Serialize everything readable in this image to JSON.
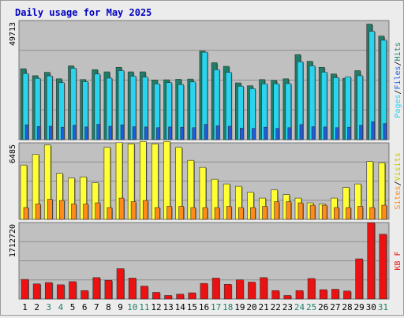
{
  "title": "Daily usage for May 2025",
  "colors": {
    "hits": "#1e7e68",
    "files": "#2ad4ee",
    "pages": "#1d5ee0",
    "visits": "#ffff33",
    "sites": "#ff8c1a",
    "kbytes": "#ee1111",
    "title": "#0000c0",
    "panel": "#c0c0c0",
    "day_weekday": "#000000",
    "day_weekend": "#1e7e68"
  },
  "chart_data": [
    {
      "type": "bar",
      "panel": "hits-files-pages",
      "ymax_label": "49713",
      "ylim": [
        0,
        49713
      ],
      "legend": {
        "pages": "Pages",
        "files": "Files",
        "hits": "Hits",
        "sep": "/"
      },
      "categories": [
        "1",
        "2",
        "3",
        "4",
        "5",
        "6",
        "7",
        "8",
        "9",
        "10",
        "11",
        "12",
        "13",
        "14",
        "15",
        "16",
        "17",
        "18",
        "19",
        "20",
        "21",
        "22",
        "23",
        "24",
        "25",
        "26",
        "27",
        "28",
        "29",
        "30",
        "31"
      ],
      "series": [
        {
          "name": "Hits",
          "values": [
            29600,
            26700,
            28100,
            25400,
            30800,
            25100,
            29200,
            28300,
            30200,
            28300,
            28300,
            24900,
            25000,
            25200,
            25300,
            37000,
            32100,
            30600,
            23700,
            22500,
            25100,
            24700,
            25400,
            35500,
            32700,
            30200,
            27400,
            25600,
            28800,
            48200,
            43200
          ]
        },
        {
          "name": "Files",
          "values": [
            27600,
            25600,
            26600,
            23800,
            29800,
            24200,
            27400,
            25700,
            28800,
            26500,
            26100,
            23300,
            23800,
            23000,
            24100,
            36500,
            29200,
            28100,
            22300,
            21300,
            23300,
            23300,
            23400,
            32500,
            30800,
            28200,
            25900,
            26200,
            26700,
            45200,
            41500
          ]
        },
        {
          "name": "Pages",
          "values": [
            6200,
            5500,
            5600,
            5200,
            6000,
            5300,
            6400,
            5600,
            6200,
            5400,
            5300,
            5000,
            5300,
            5200,
            5000,
            6400,
            5800,
            5600,
            4800,
            4700,
            5200,
            4700,
            5000,
            6300,
            5400,
            5300,
            5000,
            5200,
            6000,
            7500,
            6700
          ]
        }
      ]
    },
    {
      "type": "bar",
      "panel": "visits-sites",
      "ymax_label": "6485",
      "ylim": [
        0,
        6485
      ],
      "legend": {
        "sites": "Sites",
        "visits": "Visits",
        "sep": "/"
      },
      "categories": [
        "1",
        "2",
        "3",
        "4",
        "5",
        "6",
        "7",
        "8",
        "9",
        "10",
        "11",
        "12",
        "13",
        "14",
        "15",
        "16",
        "17",
        "18",
        "19",
        "20",
        "21",
        "22",
        "23",
        "24",
        "25",
        "26",
        "27",
        "28",
        "29",
        "30",
        "31"
      ],
      "series": [
        {
          "name": "Visits",
          "values": [
            4600,
            5500,
            6300,
            3900,
            3500,
            3600,
            3100,
            6100,
            6500,
            6400,
            6600,
            6400,
            6600,
            6100,
            5000,
            4400,
            3400,
            3000,
            2800,
            2300,
            1800,
            2500,
            2100,
            1800,
            1400,
            1300,
            1800,
            2700,
            3000,
            4900,
            4800
          ]
        },
        {
          "name": "Sites",
          "values": [
            1000,
            1300,
            1700,
            1600,
            1300,
            1300,
            1400,
            1000,
            1800,
            1500,
            1600,
            1000,
            1100,
            1100,
            1000,
            1000,
            1000,
            1100,
            1000,
            1000,
            1100,
            1500,
            1500,
            1400,
            1200,
            1200,
            1000,
            1000,
            1100,
            1000,
            1200
          ]
        }
      ]
    },
    {
      "type": "bar",
      "panel": "kbytes",
      "ymax_label": "1712720",
      "ylim": [
        0,
        1712720
      ],
      "legend": {
        "kbytes": "KB F"
      },
      "categories": [
        "1",
        "2",
        "3",
        "4",
        "5",
        "6",
        "7",
        "8",
        "9",
        "10",
        "11",
        "12",
        "13",
        "14",
        "15",
        "16",
        "17",
        "18",
        "19",
        "20",
        "21",
        "22",
        "23",
        "24",
        "25",
        "26",
        "27",
        "28",
        "29",
        "30",
        "31"
      ],
      "series": [
        {
          "name": "KB F",
          "values": [
            440000,
            340000,
            370000,
            320000,
            390000,
            190000,
            480000,
            420000,
            680000,
            470000,
            290000,
            150000,
            80000,
            110000,
            140000,
            350000,
            470000,
            330000,
            430000,
            380000,
            480000,
            190000,
            80000,
            190000,
            460000,
            210000,
            220000,
            180000,
            900000,
            1710000,
            1450000
          ]
        }
      ]
    }
  ],
  "weekend_days": [
    "3",
    "4",
    "10",
    "11",
    "17",
    "18",
    "24",
    "25",
    "31"
  ]
}
